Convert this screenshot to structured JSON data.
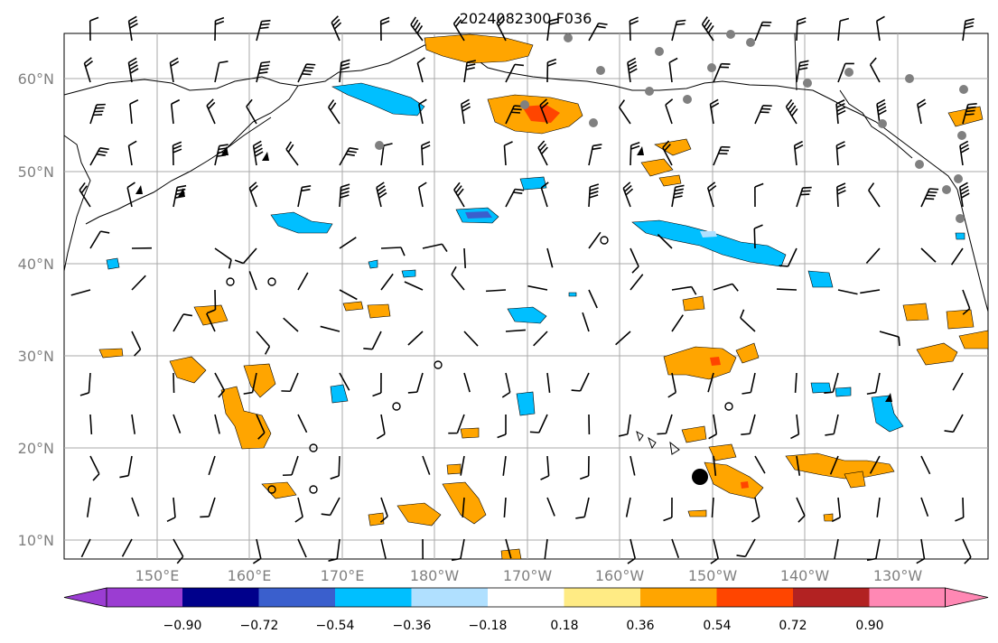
{
  "title": "2024082300 F036",
  "lat_labels": [
    "60°N",
    "50°N",
    "40°N",
    "30°N",
    "20°N",
    "10°N"
  ],
  "lon_labels": [
    "150°E",
    "160°E",
    "170°E",
    "180°W",
    "170°W",
    "160°W",
    "150°W",
    "140°W",
    "130°W"
  ],
  "colorbar": {
    "ticks": [
      "−0.90",
      "−0.72",
      "−0.54",
      "−0.36",
      "−0.18",
      "0.18",
      "0.36",
      "0.54",
      "0.72",
      "0.90"
    ],
    "colors": [
      "#9b3dd2",
      "#00008b",
      "#3a5fcd",
      "#00bfff",
      "#b0e0ff",
      "#ffffff",
      "#ffeb84",
      "#ffa500",
      "#ff4500",
      "#b22222",
      "#ff88b4"
    ]
  },
  "marker": {
    "label": "storm-center",
    "lon": -150,
    "lat": 17
  }
}
